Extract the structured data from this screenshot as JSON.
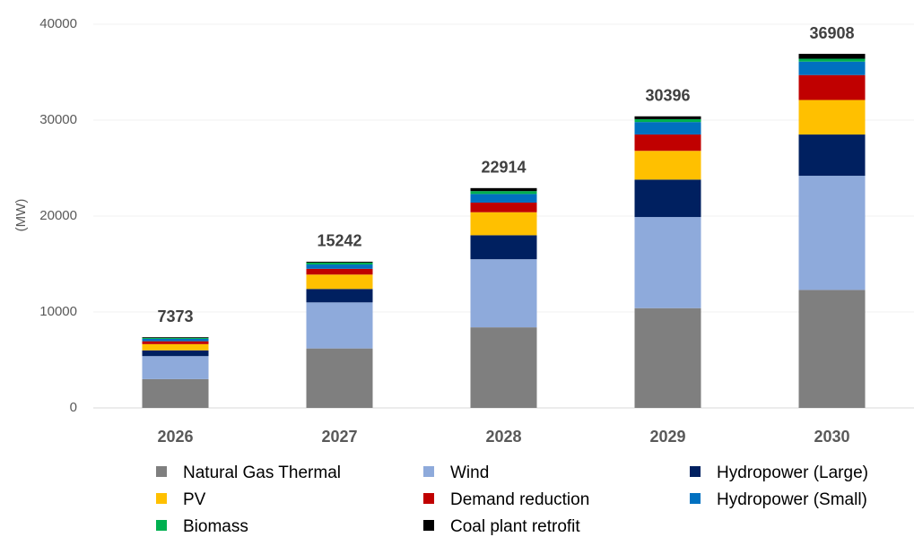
{
  "chart_data": {
    "type": "stacked_bar",
    "ylabel": "(MW)",
    "categories": [
      "2026",
      "2027",
      "2028",
      "2029",
      "2030"
    ],
    "series": [
      {
        "name": "Natural Gas Thermal",
        "color": "#7f7f7f",
        "values": [
          3000,
          6200,
          8400,
          10400,
          12300
        ]
      },
      {
        "name": "Wind",
        "color": "#8eaadb",
        "values": [
          2400,
          4800,
          7100,
          9500,
          11900
        ]
      },
      {
        "name": "Hydropower (Large)",
        "color": "#002060",
        "values": [
          600,
          1400,
          2500,
          3900,
          4300
        ]
      },
      {
        "name": "PV",
        "color": "#ffc000",
        "values": [
          650,
          1500,
          2400,
          3000,
          3600
        ]
      },
      {
        "name": "Demand reduction",
        "color": "#c00000",
        "values": [
          300,
          600,
          1000,
          1700,
          2600
        ]
      },
      {
        "name": "Hydropower (Small)",
        "color": "#0070c0",
        "values": [
          250,
          450,
          900,
          1300,
          1400
        ]
      },
      {
        "name": "Biomass",
        "color": "#00b050",
        "values": [
          100,
          200,
          300,
          300,
          300
        ]
      },
      {
        "name": "Coal plant retrofit",
        "color": "#000000",
        "values": [
          73,
          92,
          314,
          296,
          508
        ]
      }
    ],
    "totals": [
      7373,
      15242,
      22914,
      30396,
      36908
    ],
    "ylim": [
      0,
      40000
    ],
    "yticks": [
      0,
      10000,
      20000,
      30000,
      40000
    ],
    "grid": true
  }
}
